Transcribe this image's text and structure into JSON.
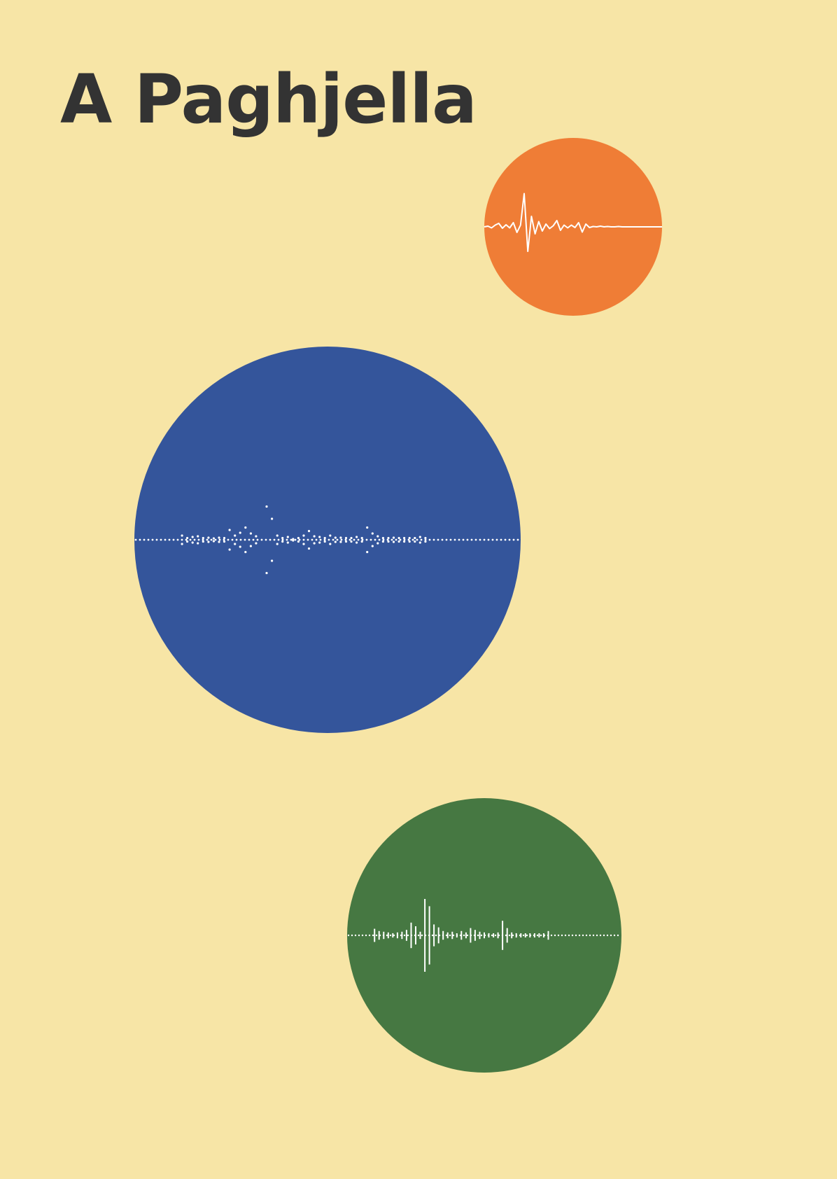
{
  "poster": {
    "title": "A Paghjella",
    "colors": {
      "background": "#f7e5a6",
      "title_text": "#333333",
      "waveform": "#ffffff"
    },
    "circles": [
      {
        "name": "orange-circle",
        "color": "#ef7d36",
        "waveform_style": "line",
        "amplitudes": [
          0,
          0.02,
          -0.03,
          0.05,
          0.1,
          -0.04,
          0.06,
          -0.03,
          0.12,
          -0.16,
          0.05,
          0.95,
          -0.7,
          0.3,
          -0.2,
          0.15,
          -0.12,
          0.08,
          -0.05,
          0.03,
          0.18,
          -0.1,
          0.05,
          -0.03,
          0.05,
          -0.02,
          0.12,
          -0.15,
          0.08,
          -0.02,
          0.01,
          0,
          0.02,
          0,
          0.01,
          0,
          0,
          0.01,
          0,
          0,
          0,
          0,
          0,
          0,
          0,
          0,
          0,
          0,
          0,
          0
        ]
      },
      {
        "name": "blue-circle",
        "color": "#34559b",
        "waveform_style": "dots",
        "amplitudes": [
          0,
          0,
          0,
          0,
          0,
          0,
          0,
          0,
          0,
          0.12,
          0.05,
          0.08,
          0.1,
          0.05,
          0.06,
          0.04,
          0.06,
          0.05,
          0.28,
          0.12,
          0.2,
          0.35,
          0.18,
          0.1,
          0,
          0.95,
          0.6,
          0.12,
          0.05,
          0.08,
          0.02,
          0.05,
          0.12,
          0.25,
          0.1,
          0.08,
          0.05,
          0.12,
          0.06,
          0.06,
          0.05,
          0.05,
          0.08,
          0.05,
          0.35,
          0.18,
          0.1,
          0.05,
          0.05,
          0.06,
          0.05,
          0.05,
          0.05,
          0.05,
          0.08,
          0.05,
          0,
          0,
          0,
          0,
          0,
          0,
          0,
          0,
          0,
          0,
          0,
          0,
          0,
          0,
          0,
          0,
          0,
          0
        ]
      },
      {
        "name": "green-circle",
        "color": "#467842",
        "waveform_style": "bars",
        "amplitudes": [
          0,
          0,
          0,
          0,
          0,
          0,
          0.18,
          0.12,
          0.1,
          0.08,
          0.06,
          0.08,
          0.1,
          0.15,
          0.35,
          0.25,
          0.1,
          1.0,
          0.8,
          0.3,
          0.22,
          0.12,
          0.08,
          0.1,
          0.05,
          0.12,
          0.08,
          0.2,
          0.15,
          0.1,
          0.08,
          0.06,
          0.05,
          0.08,
          0.4,
          0.2,
          0.08,
          0.06,
          0.05,
          0.05,
          0.05,
          0.05,
          0.05,
          0.05,
          0.12,
          0,
          0,
          0,
          0,
          0,
          0,
          0,
          0,
          0,
          0,
          0,
          0,
          0,
          0,
          0,
          0
        ]
      }
    ]
  }
}
